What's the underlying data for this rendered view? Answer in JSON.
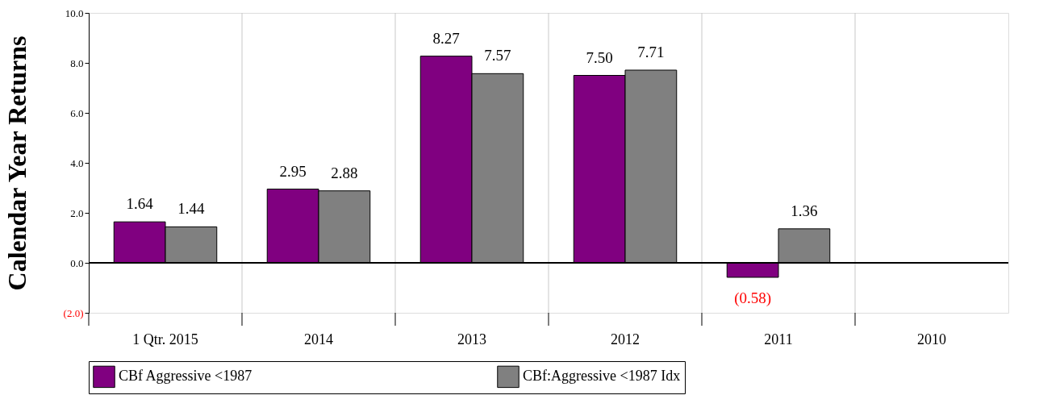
{
  "chart_data": {
    "type": "bar",
    "ylabel": "Calendar Year Returns",
    "categories": [
      "1 Qtr. 2015",
      "2014",
      "2013",
      "2012",
      "2011",
      "2010"
    ],
    "series": [
      {
        "name": "CBf Aggressive <1987",
        "color": "#800080",
        "values": [
          1.64,
          2.95,
          8.27,
          7.5,
          -0.58,
          null
        ],
        "value_labels": [
          "1.64",
          "2.95",
          "8.27",
          "7.50",
          "(0.58)",
          null
        ]
      },
      {
        "name": "CBf:Aggressive <1987 Idx",
        "color": "#808080",
        "values": [
          1.44,
          2.88,
          7.57,
          7.71,
          1.36,
          null
        ],
        "value_labels": [
          "1.44",
          "2.88",
          "7.57",
          "7.71",
          "1.36",
          null
        ]
      }
    ],
    "ylim": [
      -2,
      10
    ],
    "yticks": [
      {
        "value": -2,
        "label": "(2.0)"
      },
      {
        "value": 0,
        "label": "0.0"
      },
      {
        "value": 2,
        "label": "2.0"
      },
      {
        "value": 4,
        "label": "4.0"
      },
      {
        "value": 6,
        "label": "6.0"
      },
      {
        "value": 8,
        "label": "8.0"
      },
      {
        "value": 10,
        "label": "10.0"
      }
    ],
    "grid": "x",
    "legend": "bottom"
  }
}
